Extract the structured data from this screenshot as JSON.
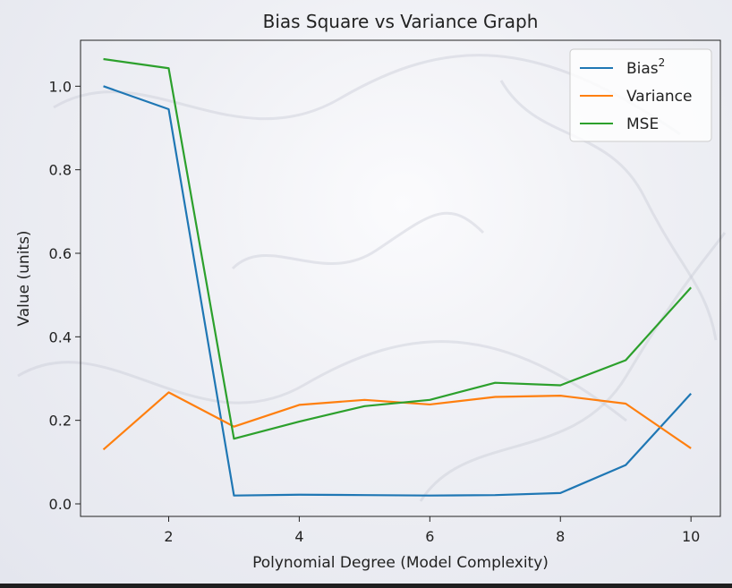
{
  "chart_data": {
    "type": "line",
    "title": "Bias Square vs Variance Graph",
    "xlabel": "Polynomial Degree (Model Complexity)",
    "ylabel": "Value (units)",
    "xlim": [
      0.65,
      10.45
    ],
    "ylim": [
      -0.03,
      1.11
    ],
    "x": [
      1,
      2,
      3,
      4,
      5,
      6,
      7,
      8,
      9,
      10
    ],
    "xticks": [
      2,
      4,
      6,
      8,
      10
    ],
    "xtick_labels": [
      "2",
      "4",
      "6",
      "8",
      "10"
    ],
    "yticks": [
      0.0,
      0.2,
      0.4,
      0.6,
      0.8,
      1.0
    ],
    "ytick_labels": [
      "0.0",
      "0.2",
      "0.4",
      "0.6",
      "0.8",
      "1.0"
    ],
    "grid": false,
    "legend_position": "top-right",
    "series": [
      {
        "name": "Bias",
        "name_superscript": "2",
        "color": "#1f77b4",
        "values": [
          1.0,
          0.945,
          0.02,
          0.022,
          0.021,
          0.02,
          0.021,
          0.026,
          0.093,
          0.264
        ]
      },
      {
        "name": "Variance",
        "name_superscript": "",
        "color": "#ff7f0e",
        "values": [
          0.13,
          0.267,
          0.185,
          0.237,
          0.249,
          0.238,
          0.256,
          0.259,
          0.24,
          0.133
        ]
      },
      {
        "name": "MSE",
        "name_superscript": "",
        "color": "#2ca02c",
        "values": [
          1.065,
          1.043,
          0.156,
          0.197,
          0.234,
          0.249,
          0.29,
          0.284,
          0.344,
          0.518
        ]
      }
    ]
  }
}
